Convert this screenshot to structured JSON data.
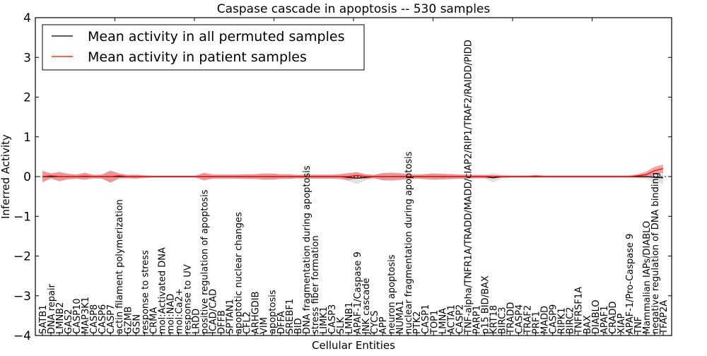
{
  "chart_data": {
    "type": "line",
    "title": "Caspase cascade in apoptosis -- 530 samples",
    "xlabel": "Cellular Entities",
    "ylabel": "Inferred Activity",
    "ylim": [
      -4,
      4
    ],
    "yticks": [
      "−4",
      "−3",
      "−2",
      "−1",
      "0",
      "1",
      "2",
      "3",
      "4"
    ],
    "ytick_values": [
      -4,
      -3,
      -2,
      -1,
      0,
      1,
      2,
      3,
      4
    ],
    "grid": false,
    "legend_position": "top-left",
    "categories": [
      "SATB1",
      "DNA repair",
      "LMNB2",
      "GAS2",
      "CASP10",
      "MAP3K1",
      "CASP8",
      "CASP6",
      "CASP7",
      "actin filament polymerization",
      "GZMB",
      "GSN",
      "response to stress",
      "CRMA",
      "mol:Activated DNA",
      "mol:NAD",
      "mol:Ca2+",
      "response to UV",
      "LRDD",
      "positive regulation of apoptosis",
      "ICAD/CAD",
      "DFFB",
      "SPTAN1",
      "apoptotic nuclear changes",
      "CFL2",
      "ARHGDIB",
      "VIM",
      "apoptosis",
      "DFFA",
      "SREBF1",
      "BID",
      "DNA fragmentation during apoptosis",
      "stress fiber formation",
      "LIMK1",
      "CASP3",
      "SLK",
      "LMNB1",
      "APAF-1/Caspase 9",
      "JNK cascade",
      "CYCS",
      "APP",
      "neuron apoptosis",
      "NUMA1",
      "nuclear fragmentation during apoptosis",
      "PTK2",
      "CASP1",
      "TOP1",
      "LMNA",
      "ACTA1",
      "CASP2",
      "TNF-alpha/TNFR1A/TRADD/MADD/cIAP2/RIP1/TRAF2/RAIDD/PIDD",
      "PARP1",
      "p15 BID/BAX",
      "KRT18",
      "BIRC3",
      "TRADD",
      "CASP4",
      "TRAF2",
      "PRF1",
      "MADD",
      "CASP9",
      "RIPK1",
      "BIRC2",
      "TNFRSF1A",
      "BAX",
      "DIABLO",
      "APAF1",
      "CRADD",
      "XIAP",
      "APAF-1/Pro-Caspase 9",
      "TNF",
      "Mammalian IAPs/DIABLO",
      "negative regulation of DNA binding",
      "TFAP2A"
    ],
    "series": [
      {
        "name": "Mean activity in all permuted samples",
        "color": "#000000",
        "values": [
          0,
          0,
          0,
          0,
          0,
          0,
          0,
          0,
          0,
          0,
          0,
          0,
          0,
          0,
          0,
          0,
          0,
          0,
          0,
          0,
          0,
          0,
          0,
          0,
          0,
          0,
          0,
          0,
          0,
          0,
          0,
          0,
          0,
          0,
          0,
          0,
          -0.02,
          -0.04,
          -0.02,
          0,
          0,
          0,
          0,
          0,
          0,
          0,
          0,
          0,
          0,
          0,
          0,
          0,
          0,
          -0.03,
          0,
          0,
          0,
          0,
          0,
          0,
          0,
          0,
          0,
          0,
          0,
          0,
          0,
          0,
          0,
          0,
          0,
          0,
          -0.02,
          -0.03
        ],
        "spread": [
          0.12,
          0.08,
          0.1,
          0.07,
          0.06,
          0.08,
          0.05,
          0.06,
          0.15,
          0.08,
          0.05,
          0.05,
          0.04,
          0.03,
          0.03,
          0.03,
          0.03,
          0.03,
          0.03,
          0.08,
          0.06,
          0.06,
          0.06,
          0.06,
          0.06,
          0.06,
          0.07,
          0.07,
          0.06,
          0.06,
          0.05,
          0.05,
          0.05,
          0.05,
          0.05,
          0.06,
          0.1,
          0.15,
          0.08,
          0.05,
          0.09,
          0.12,
          0.1,
          0.07,
          0.06,
          0.07,
          0.08,
          0.07,
          0.07,
          0.06,
          0.05,
          0.05,
          0.05,
          0.12,
          0.05,
          0.04,
          0.04,
          0.04,
          0.04,
          0.04,
          0.04,
          0.04,
          0.04,
          0.04,
          0.04,
          0.04,
          0.04,
          0.04,
          0.04,
          0.04,
          0.05,
          0.06,
          0.12,
          0.15
        ]
      },
      {
        "name": "Mean activity in patient samples",
        "color": "#ff0000",
        "values": [
          0,
          0.02,
          0,
          0,
          0,
          0.01,
          0,
          0,
          0,
          0.02,
          0,
          0,
          0,
          0,
          0,
          0,
          0,
          0,
          0,
          0,
          0,
          0,
          0,
          0,
          0,
          0,
          0,
          0,
          0,
          0,
          0,
          0,
          0,
          0,
          0,
          0,
          0,
          0.03,
          0,
          0,
          0,
          0,
          0,
          0,
          0,
          0,
          0,
          0,
          0,
          0,
          0,
          0,
          0,
          0,
          0,
          0,
          0,
          0,
          0.01,
          0,
          0,
          0,
          0,
          0,
          0,
          0,
          0,
          0,
          0,
          0,
          0.02,
          0.05,
          0.15,
          0.2
        ],
        "spread": [
          0.15,
          0.06,
          0.12,
          0.07,
          0.05,
          0.09,
          0.04,
          0.05,
          0.15,
          0.06,
          0.04,
          0.05,
          0.03,
          0.02,
          0.02,
          0.02,
          0.02,
          0.02,
          0.02,
          0.1,
          0.05,
          0.05,
          0.05,
          0.05,
          0.06,
          0.06,
          0.08,
          0.08,
          0.06,
          0.06,
          0.04,
          0.05,
          0.05,
          0.05,
          0.05,
          0.06,
          0.09,
          0.08,
          0.06,
          0.04,
          0.09,
          0.09,
          0.08,
          0.06,
          0.05,
          0.06,
          0.08,
          0.07,
          0.06,
          0.05,
          0.05,
          0.04,
          0.04,
          0.04,
          0.03,
          0.02,
          0.02,
          0.02,
          0.03,
          0.02,
          0.02,
          0.02,
          0.02,
          0.02,
          0.02,
          0.02,
          0.02,
          0.02,
          0.02,
          0.02,
          0.04,
          0.08,
          0.1,
          0.1
        ]
      }
    ]
  }
}
